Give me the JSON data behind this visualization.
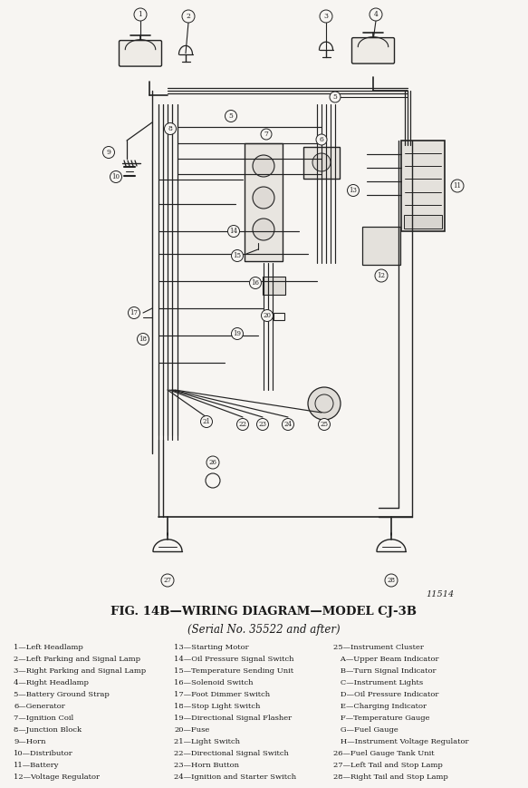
{
  "title": "FIG. 14B—WIRING DIAGRAM—MODEL CJ-3B",
  "subtitle": "(Serial No. 35522 and after)",
  "figure_number": "11514",
  "background_color": "#f7f5f2",
  "text_color": "#1a1a1a",
  "legend_col1": [
    "1—Left Headlamp",
    "2—Left Parking and Signal Lamp",
    "3—Right Parking and Signal Lamp",
    "4—Right Headlamp",
    "5—Battery Ground Strap",
    "6—Generator",
    "7—Ignition Coil",
    "8—Junction Block",
    "9—Horn",
    "10—Distributor",
    "11—Battery",
    "12—Voltage Regulator"
  ],
  "legend_col2": [
    "13—Starting Motor",
    "14—Oil Pressure Signal Switch",
    "15—Temperature Sending Unit",
    "16—Solenoid Switch",
    "17—Foot Dimmer Switch",
    "18—Stop Light Switch",
    "19—Directional Signal Flasher",
    "20—Fuse",
    "21—Light Switch",
    "22—Directional Signal Switch",
    "23—Horn Button",
    "24—Ignition and Starter Switch"
  ],
  "legend_col3": [
    "25—Instrument Cluster",
    "   A—Upper Beam Indicator",
    "   B—Turn Signal Indicator",
    "   C—Instrument Lights",
    "   D—Oil Pressure Indicator",
    "   E—Charging Indicator",
    "   F—Temperature Gauge",
    "   G—Fuel Gauge",
    "   H—Instrument Voltage Regulator",
    "26—Fuel Gauge Tank Unit",
    "27—Left Tail and Stop Lamp",
    "28—Right Tail and Stop Lamp"
  ],
  "lc": "#222222"
}
